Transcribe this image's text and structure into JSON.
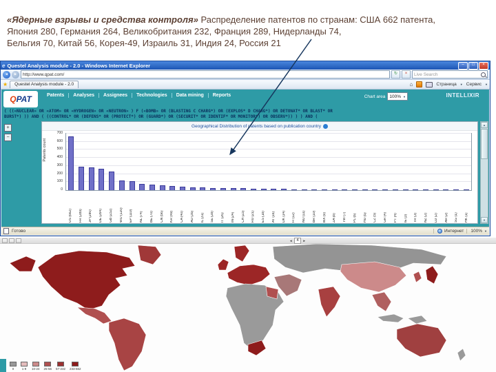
{
  "slide": {
    "heading_bold": "«Ядерные взрывы и средства контроля»",
    "heading_rest": " Распределение патентов по странам: США 662 патента,",
    "heading_line2": "Япония 280, Германия 264, Великобритания 232, Франция 289, Нидерланды 74,",
    "heading_line3": "Бельгия 70, Китай 56, Корея-49, Израиль 31, Индия 24, Россия 21"
  },
  "icons": {
    "ie": "e",
    "minimize": "–",
    "maximize": "□",
    "close": "×",
    "back": "◄",
    "forward": "►",
    "refresh": "↻",
    "stop": "×",
    "star": "★",
    "home": "⌂",
    "caret": "▼",
    "scroll_up": "▲",
    "scroll_down": "▼",
    "pager_prev": "◄",
    "pager_next": "►"
  },
  "browser": {
    "title": "Questel Analysis module - 2.0 - Windows Internet Explorer",
    "url": "http://www.qpat.com/",
    "search_placeholder": "Live Search",
    "tab_title": "Questel Analysis module - 2.0",
    "page_menu": "Страница",
    "tools_menu": "Сервис",
    "status_left": "Готово",
    "status_zone": "Интернет",
    "status_zoom": "100%"
  },
  "qpat": {
    "logo_q": "Q",
    "logo_rest": "PAT",
    "brand": "INTELLIXIR",
    "nav_items": [
      "Patents",
      "Analyses",
      "Assignees",
      "Technologies",
      "Data mining",
      "Reports"
    ],
    "chart_area_label": "Chart area",
    "zoom_select": "100%",
    "zoom_in": "+",
    "zoom_out": "−",
    "query_line1": "( ((«NUCLEAR» OR «ATOM» OR «HYDROGEN» OR «NEUTRON» ) F («BOMB» OR (BLASTING C CHARG*) OR (EXPLOS* D CHARG*) OR DETONAT* OR BLAST* OR",
    "query_line2": "BURST*) )) AND ( ((CONTROL* OR (DEFENS* OR (PROTECT*) OR (GUARD*) OR (SECURIT* OR IDENTIF* OR MONITOR*) OR OBSERV*)) ) ) AND ("
  },
  "chart_data": {
    "type": "bar",
    "title": "Geographical Distribution of patents based on publication country",
    "xlabel": "",
    "ylabel": "Patents count",
    "ylim": [
      0,
      700
    ],
    "ytick_step": 100,
    "grid": true,
    "bar_color": "#7070c8",
    "legend_position": "none",
    "categories": [
      "US",
      "FR",
      "JP",
      "DE",
      "GB",
      "WO",
      "EP",
      "NL",
      "BE",
      "CN",
      "KR",
      "CA",
      "AU",
      "IL",
      "SE",
      "IT",
      "IN",
      "CH",
      "RU",
      "ES",
      "AT",
      "DK",
      "FI",
      "NO",
      "BR",
      "MX",
      "ZA",
      "TW",
      "PL",
      "HU",
      "CZ",
      "GR",
      "PT",
      "IE",
      "TR",
      "NZ",
      "LU",
      "AR",
      "SG",
      "HK"
    ],
    "values": [
      662,
      289,
      280,
      264,
      232,
      120,
      110,
      74,
      70,
      56,
      49,
      40,
      35,
      31,
      28,
      26,
      24,
      23,
      21,
      18,
      16,
      14,
      12,
      11,
      10,
      9,
      8,
      7,
      6,
      5,
      5,
      4,
      4,
      3,
      3,
      2,
      2,
      2,
      1,
      1
    ]
  },
  "map": {
    "pager": "4",
    "legend": [
      {
        "color": "#999999",
        "label": "0"
      },
      {
        "color": "#e3bcbc",
        "label": "1-9"
      },
      {
        "color": "#cc8a8a",
        "label": "10-24"
      },
      {
        "color": "#b05050",
        "label": "25-56"
      },
      {
        "color": "#9c3030",
        "label": "57-232"
      },
      {
        "color": "#8e1c1c",
        "label": "233-662"
      }
    ],
    "regions": [
      {
        "name": "north-america",
        "color": "#8e1c1c"
      },
      {
        "name": "greenland",
        "color": "#a03838"
      },
      {
        "name": "central-america",
        "color": "#b05050"
      },
      {
        "name": "south-america",
        "color": "#a84444"
      },
      {
        "name": "europe",
        "color": "#9c2626"
      },
      {
        "name": "africa",
        "color": "#9a9a9a"
      },
      {
        "name": "south-africa",
        "color": "#8e1c1c"
      },
      {
        "name": "northeast-africa",
        "color": "#b05050"
      },
      {
        "name": "russia-central-asia",
        "color": "#949494"
      },
      {
        "name": "middle-east",
        "color": "#a87878"
      },
      {
        "name": "india",
        "color": "#a84040"
      },
      {
        "name": "china",
        "color": "#cc8a8a"
      },
      {
        "name": "southeast-asia",
        "color": "#b06060"
      },
      {
        "name": "indonesia",
        "color": "#9a9a9a"
      },
      {
        "name": "japan",
        "color": "#8e1c1c"
      },
      {
        "name": "korea",
        "color": "#b05050"
      },
      {
        "name": "australia",
        "color": "#a04040"
      },
      {
        "name": "new-zealand",
        "color": "#9a9a9a"
      }
    ],
    "arrow_color": "#17375e"
  }
}
